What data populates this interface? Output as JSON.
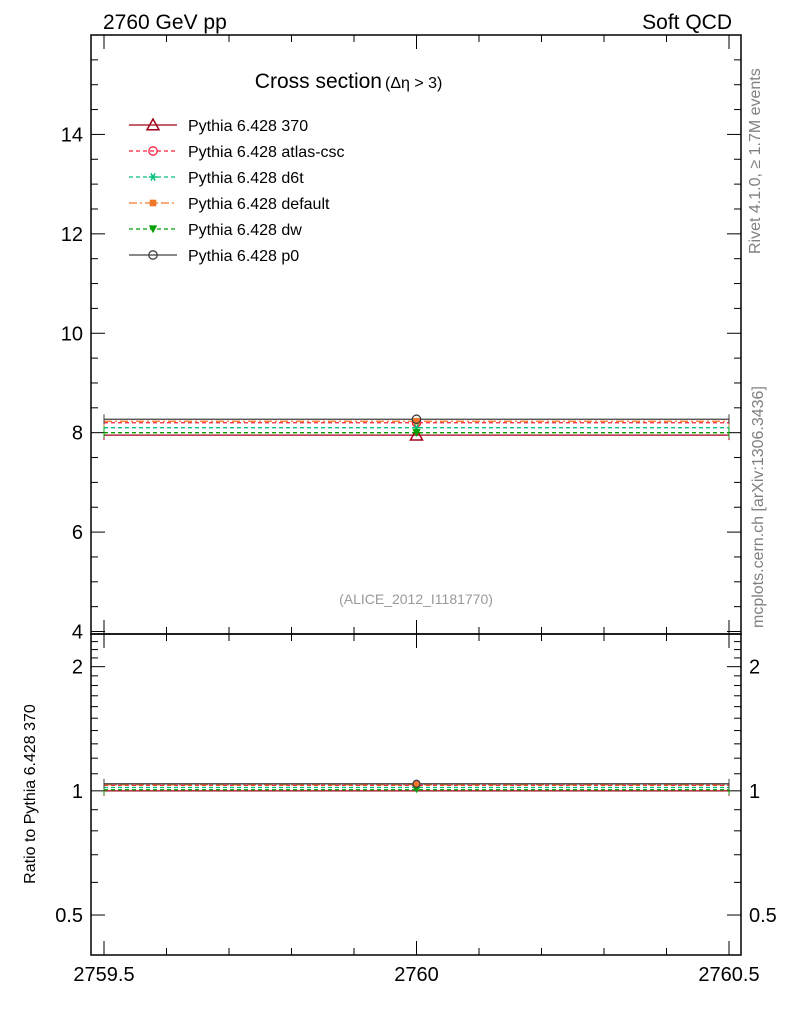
{
  "header": {
    "left": "2760 GeV pp",
    "right": "Soft QCD"
  },
  "side": {
    "rivet": "Rivet 4.1.0, ≥ 1.7M events",
    "mcplots": "mcplots.cern.ch [arXiv:1306.3436]"
  },
  "chart_data": [
    {
      "type": "line",
      "panel": "main",
      "title_main": "Cross section",
      "title_sub": "(Δη > 3)",
      "analysis": "(ALICE_2012_I1181770)",
      "xlabel": "",
      "ylabel": "",
      "xlim": [
        2759.5,
        2760.5
      ],
      "ylim": [
        3.95,
        16
      ],
      "yticks": [
        4,
        6,
        8,
        10,
        12,
        14
      ],
      "ytick_labels": [
        "4",
        "6",
        "8",
        "10",
        "12",
        "14"
      ],
      "xticks": [
        2759.5,
        2760,
        2760.5
      ],
      "x": [
        2760
      ],
      "x_bins": [
        [
          2759.5,
          2760.5
        ]
      ],
      "legend_position": "top-left",
      "series": [
        {
          "name": "Pythia 6.428 370",
          "color": "#a00018",
          "dash": "",
          "marker": "triangle-open",
          "values": [
            7.95
          ]
        },
        {
          "name": "Pythia 6.428 atlas-csc",
          "color": "#ff1f3d",
          "dash": "4,3",
          "marker": "circle-open",
          "values": [
            8.2
          ]
        },
        {
          "name": "Pythia 6.428 d6t",
          "color": "#00c07a",
          "dash": "4,3",
          "marker": "asterisk",
          "values": [
            8.1
          ]
        },
        {
          "name": "Pythia 6.428 default",
          "color": "#f07828",
          "dash": "8,3,2,3",
          "marker": "square",
          "values": [
            8.23
          ]
        },
        {
          "name": "Pythia 6.428 dw",
          "color": "#00a000",
          "dash": "4,3",
          "marker": "triangle-down",
          "values": [
            8.0
          ]
        },
        {
          "name": "Pythia 6.428 p0",
          "color": "#404040",
          "dash": "",
          "marker": "circle-open",
          "values": [
            8.27
          ]
        }
      ]
    },
    {
      "type": "line",
      "panel": "ratio",
      "xlabel": "",
      "ylabel": "Ratio to Pythia 6.428 370",
      "scale": "log",
      "xlim": [
        2759.5,
        2760.5
      ],
      "ylim": [
        0.4,
        2.4
      ],
      "yticks": [
        0.5,
        1,
        2
      ],
      "ytick_labels": [
        "0.5",
        "1",
        "2"
      ],
      "xticks": [
        2759.5,
        2760,
        2760.5
      ],
      "xtick_labels": [
        "2759.5",
        "2760",
        "2760.5"
      ],
      "x": [
        2760
      ],
      "series": [
        {
          "name": "Pythia 6.428 370",
          "values": [
            1.0
          ]
        },
        {
          "name": "Pythia 6.428 atlas-csc",
          "values": [
            1.031
          ]
        },
        {
          "name": "Pythia 6.428 d6t",
          "values": [
            1.019
          ]
        },
        {
          "name": "Pythia 6.428 default",
          "values": [
            1.035
          ]
        },
        {
          "name": "Pythia 6.428 dw",
          "values": [
            1.006
          ]
        },
        {
          "name": "Pythia 6.428 p0",
          "values": [
            1.04
          ]
        }
      ]
    }
  ]
}
